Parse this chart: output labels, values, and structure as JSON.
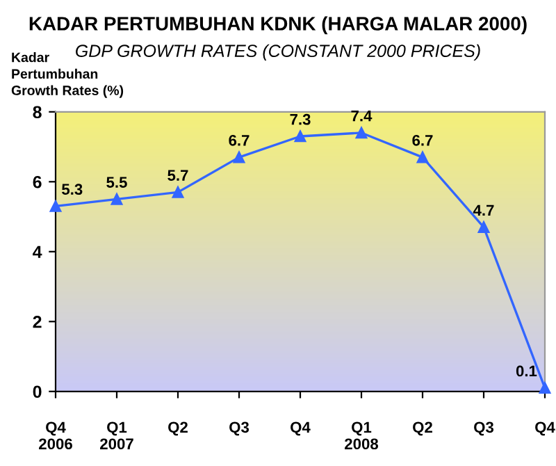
{
  "chart_data": {
    "type": "line",
    "title": "KADAR PERTUMBUHAN KDNK (HARGA MALAR 2000)",
    "subtitle": "GDP GROWTH RATES (CONSTANT 2000 PRICES)",
    "ylabel": "Kadar\nPertumbuhan\nGrowth Rates (%)",
    "categories": [
      "Q4\n2006",
      "Q1\n2007",
      "Q2",
      "Q3",
      "Q4",
      "Q1\n2008",
      "Q2",
      "Q3",
      "Q4"
    ],
    "series": [
      {
        "color": "#3366ff",
        "values": [
          5.3,
          5.5,
          5.7,
          6.7,
          7.3,
          7.4,
          6.7,
          4.7,
          0.1
        ]
      }
    ],
    "ylim": [
      0,
      8
    ],
    "yticks": [
      0,
      2,
      4,
      6,
      8
    ],
    "marker": "triangle",
    "line_style": "solid",
    "data_labels": true,
    "grid": false,
    "legend": false
  }
}
